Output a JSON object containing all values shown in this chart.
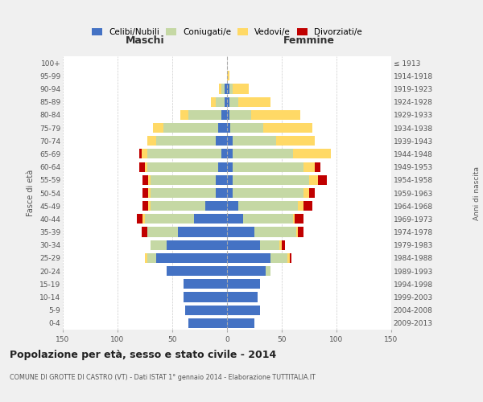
{
  "age_groups": [
    "0-4",
    "5-9",
    "10-14",
    "15-19",
    "20-24",
    "25-29",
    "30-34",
    "35-39",
    "40-44",
    "45-49",
    "50-54",
    "55-59",
    "60-64",
    "65-69",
    "70-74",
    "75-79",
    "80-84",
    "85-89",
    "90-94",
    "95-99",
    "100+"
  ],
  "birth_years": [
    "2009-2013",
    "2004-2008",
    "1999-2003",
    "1994-1998",
    "1989-1993",
    "1984-1988",
    "1979-1983",
    "1974-1978",
    "1969-1973",
    "1964-1968",
    "1959-1963",
    "1954-1958",
    "1949-1953",
    "1944-1948",
    "1939-1943",
    "1934-1938",
    "1929-1933",
    "1924-1928",
    "1919-1923",
    "1914-1918",
    "≤ 1913"
  ],
  "maschi": {
    "celibi": [
      35,
      38,
      40,
      40,
      55,
      65,
      55,
      45,
      30,
      20,
      10,
      10,
      8,
      5,
      10,
      8,
      5,
      2,
      2,
      0,
      0
    ],
    "coniugati": [
      0,
      0,
      0,
      0,
      0,
      8,
      15,
      28,
      45,
      50,
      60,
      60,
      65,
      68,
      55,
      50,
      30,
      8,
      3,
      0,
      0
    ],
    "vedovi": [
      0,
      0,
      0,
      0,
      0,
      2,
      0,
      0,
      2,
      2,
      2,
      2,
      2,
      5,
      8,
      10,
      8,
      5,
      2,
      0,
      0
    ],
    "divorziati": [
      0,
      0,
      0,
      0,
      0,
      0,
      0,
      5,
      5,
      5,
      5,
      5,
      5,
      2,
      0,
      0,
      0,
      0,
      0,
      0,
      0
    ]
  },
  "femmine": {
    "nubili": [
      25,
      30,
      28,
      30,
      35,
      40,
      30,
      25,
      15,
      10,
      5,
      5,
      5,
      5,
      5,
      3,
      2,
      2,
      2,
      0,
      0
    ],
    "coniugate": [
      0,
      0,
      0,
      0,
      5,
      15,
      18,
      38,
      45,
      55,
      65,
      70,
      65,
      55,
      40,
      30,
      20,
      8,
      3,
      0,
      0
    ],
    "vedove": [
      0,
      0,
      0,
      0,
      0,
      2,
      2,
      2,
      2,
      5,
      5,
      8,
      10,
      35,
      35,
      45,
      45,
      30,
      15,
      2,
      0
    ],
    "divorziate": [
      0,
      0,
      0,
      0,
      0,
      2,
      3,
      5,
      8,
      8,
      5,
      8,
      5,
      0,
      0,
      0,
      0,
      0,
      0,
      0,
      0
    ]
  },
  "colors": {
    "celibi_nubili": "#4472C4",
    "coniugati": "#C5D8A4",
    "vedovi": "#FFD966",
    "divorziati": "#C00000"
  },
  "xlim": 150,
  "title": "Popolazione per età, sesso e stato civile - 2014",
  "subtitle": "COMUNE DI GROTTE DI CASTRO (VT) - Dati ISTAT 1° gennaio 2014 - Elaborazione TUTTITALIA.IT",
  "ylabel": "Fasce di età",
  "ylabel2": "Anni di nascita",
  "xlabel_left": "Maschi",
  "xlabel_right": "Femmine",
  "bg_color": "#f0f0f0",
  "plot_bg_color": "#ffffff",
  "bar_height": 0.75,
  "legend_labels": [
    "Celibi/Nubili",
    "Coniugati/e",
    "Vedovi/e",
    "Divorziati/e"
  ]
}
